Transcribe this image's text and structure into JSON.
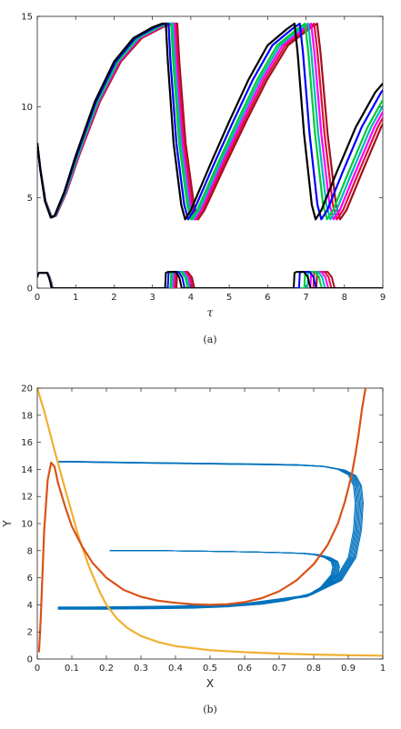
{
  "figure": {
    "caption_a": "(a)",
    "caption_b": "(b)"
  },
  "chart_data": [
    {
      "type": "line",
      "panel": "a",
      "xlabel": "τ",
      "ylabel": "",
      "xlim": [
        0,
        9
      ],
      "ylim": [
        0,
        15
      ],
      "xticks": [
        "0",
        "1",
        "2",
        "3",
        "4",
        "5",
        "6",
        "7",
        "8",
        "9"
      ],
      "yticks": [
        "0",
        "5",
        "10",
        "15"
      ],
      "series_colors": [
        "#000000",
        "#0000ff",
        "#00cc33",
        "#00b8b8",
        "#ff00ff",
        "#e0103a",
        "#a01020"
      ],
      "series_shift": [
        0.0,
        0.07,
        0.14,
        0.18,
        0.22,
        0.26,
        0.3
      ],
      "upper_series_template": {
        "x": [
          0,
          0.08,
          0.2,
          0.35,
          0.45,
          0.7,
          1.0,
          1.5,
          2.0,
          2.5,
          3.0,
          3.25,
          3.35,
          3.4,
          3.55,
          3.75,
          3.85,
          4.0,
          4.5,
          5.0,
          5.5,
          6.0,
          6.5,
          6.7,
          6.78,
          6.95,
          7.15,
          7.25,
          7.4,
          7.8,
          8.3,
          8.8,
          9.0
        ],
        "y": [
          8.0,
          6.5,
          4.8,
          3.9,
          4.0,
          5.3,
          7.3,
          10.3,
          12.5,
          13.8,
          14.4,
          14.6,
          14.6,
          12.5,
          8.0,
          4.6,
          3.8,
          4.3,
          6.8,
          9.2,
          11.5,
          13.4,
          14.3,
          14.6,
          13.0,
          8.5,
          4.6,
          3.8,
          4.3,
          6.4,
          8.9,
          10.8,
          11.3
        ]
      },
      "lower_series_template": {
        "x": [
          0,
          0.02,
          0.05,
          0.1,
          0.25,
          0.3,
          0.34,
          0.37,
          0.42,
          3.33,
          3.35,
          3.4,
          3.6,
          3.7,
          3.73,
          3.76,
          6.68,
          6.7,
          6.75,
          6.95,
          7.05,
          7.08,
          7.12,
          9.0
        ],
        "y": [
          0.6,
          0.8,
          0.85,
          0.85,
          0.85,
          0.6,
          0.3,
          0.0,
          0.0,
          0.0,
          0.85,
          0.9,
          0.9,
          0.6,
          0.3,
          0.0,
          0.0,
          0.85,
          0.9,
          0.9,
          0.6,
          0.3,
          0.0,
          0.0
        ]
      }
    },
    {
      "type": "line",
      "panel": "b",
      "xlabel": "X",
      "ylabel": "Y",
      "xlim": [
        0,
        1
      ],
      "ylim": [
        0,
        20
      ],
      "xticks": [
        "0",
        "0.1",
        "0.2",
        "0.3",
        "0.4",
        "0.5",
        "0.6",
        "0.7",
        "0.8",
        "0.9",
        "1"
      ],
      "yticks": [
        "0",
        "2",
        "4",
        "6",
        "8",
        "10",
        "12",
        "14",
        "16",
        "18",
        "20"
      ],
      "series": [
        {
          "color": "#f0b030",
          "x": [
            0,
            0.02,
            0.05,
            0.08,
            0.1,
            0.12,
            0.15,
            0.18,
            0.2,
            0.23,
            0.26,
            0.3,
            0.35,
            0.4,
            0.5,
            0.6,
            0.7,
            0.8,
            0.9,
            1.0
          ],
          "y": [
            20,
            18.3,
            15.4,
            12.6,
            10.8,
            9.0,
            6.8,
            5.0,
            4.0,
            3.0,
            2.3,
            1.7,
            1.25,
            0.95,
            0.65,
            0.5,
            0.4,
            0.33,
            0.28,
            0.25
          ]
        },
        {
          "color": "#d95319",
          "x": [
            0.005,
            0.01,
            0.02,
            0.03,
            0.04,
            0.05,
            0.06,
            0.08,
            0.1,
            0.13,
            0.16,
            0.2,
            0.25,
            0.3,
            0.35,
            0.4,
            0.45,
            0.5,
            0.55,
            0.6,
            0.65,
            0.7,
            0.75,
            0.8,
            0.84,
            0.87,
            0.89,
            0.91,
            0.92,
            0.93,
            0.94,
            0.95
          ],
          "y": [
            0.5,
            3.0,
            9.5,
            13.2,
            14.5,
            14.2,
            13.0,
            11.3,
            9.8,
            8.3,
            7.1,
            6.0,
            5.1,
            4.6,
            4.3,
            4.15,
            4.05,
            4.0,
            4.05,
            4.2,
            4.5,
            5.0,
            5.8,
            7.0,
            8.4,
            10.0,
            11.6,
            13.6,
            15.0,
            16.6,
            18.5,
            20.0
          ]
        }
      ],
      "trajectory": {
        "color": "#0072bd",
        "x": [
          0.21,
          0.35,
          0.5,
          0.62,
          0.7,
          0.76,
          0.8,
          0.83,
          0.85,
          0.855,
          0.85,
          0.82,
          0.78,
          0.72,
          0.65,
          0.55,
          0.45,
          0.3,
          0.15,
          0.08,
          0.06,
          0.2,
          0.4,
          0.6,
          0.78,
          0.86,
          0.9,
          0.915,
          0.92,
          0.915,
          0.9,
          0.87,
          0.82,
          0.75,
          0.65,
          0.5,
          0.35,
          0.2,
          0.1,
          0.06
        ],
        "y": [
          8.0,
          8.0,
          7.95,
          7.9,
          7.85,
          7.8,
          7.7,
          7.5,
          7.2,
          6.8,
          6.2,
          5.3,
          4.7,
          4.3,
          4.05,
          3.85,
          3.75,
          3.7,
          3.68,
          3.67,
          3.67,
          3.68,
          3.75,
          3.95,
          4.6,
          5.8,
          7.5,
          9.5,
          11.5,
          12.8,
          13.6,
          14.0,
          14.25,
          14.35,
          14.4,
          14.45,
          14.5,
          14.55,
          14.6,
          14.6
        ],
        "loop_offsets": [
          0,
          0.004,
          0.008,
          0.012,
          0.016,
          0.02,
          0.024,
          0.028
        ]
      }
    }
  ]
}
